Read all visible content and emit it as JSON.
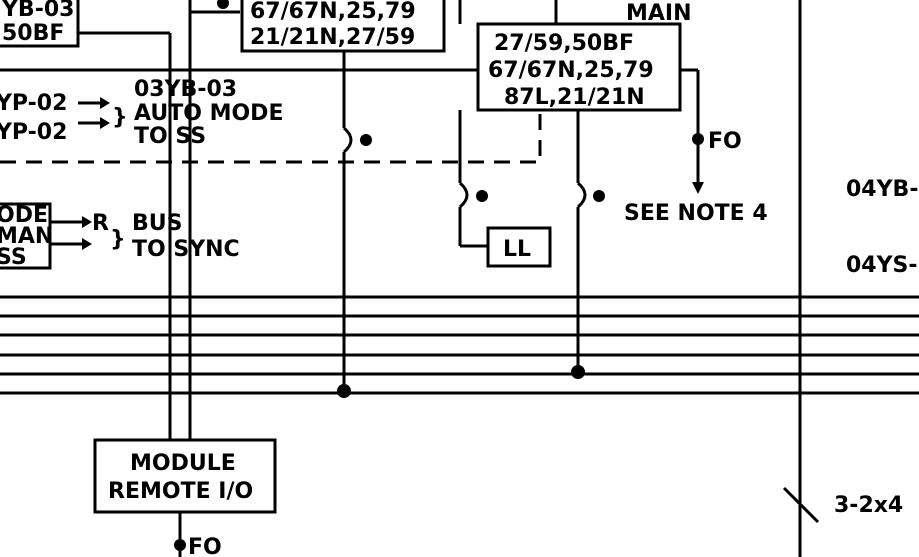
{
  "relay_box_upper_left": {
    "line1": "67/67N,25,79",
    "line2": "21/21N,27/59"
  },
  "relay_box_main": {
    "line1": "27/59,50BF",
    "line2": "67/67N,25,79",
    "line3": "87L,21/21N"
  },
  "label_main": "MAIN",
  "box_left_top": {
    "line1": "YB-03",
    "line2": "50BF"
  },
  "left_inputs": {
    "input1": "YP-02",
    "input2": "YP-02",
    "tag": "03YB-03",
    "auto_mode": "AUTO MODE",
    "to_ss": "TO SS"
  },
  "box_left_mode": {
    "line1": "ODE",
    "line2": "MAN",
    "line3": "SS"
  },
  "bus_sync": {
    "bus": "BUS",
    "relay_r": "R",
    "to_sync": "TO SYNC"
  },
  "ll_box": "LL",
  "fo_label_right": "FO",
  "see_note": "SEE NOTE 4",
  "right_labels": {
    "label1": "04YB-",
    "label2": "04YS-"
  },
  "remote_io": {
    "line1": "MODULE",
    "line2": "REMOTE I/O"
  },
  "fo_label_bottom": "FO",
  "cable_label": "3-2x4"
}
